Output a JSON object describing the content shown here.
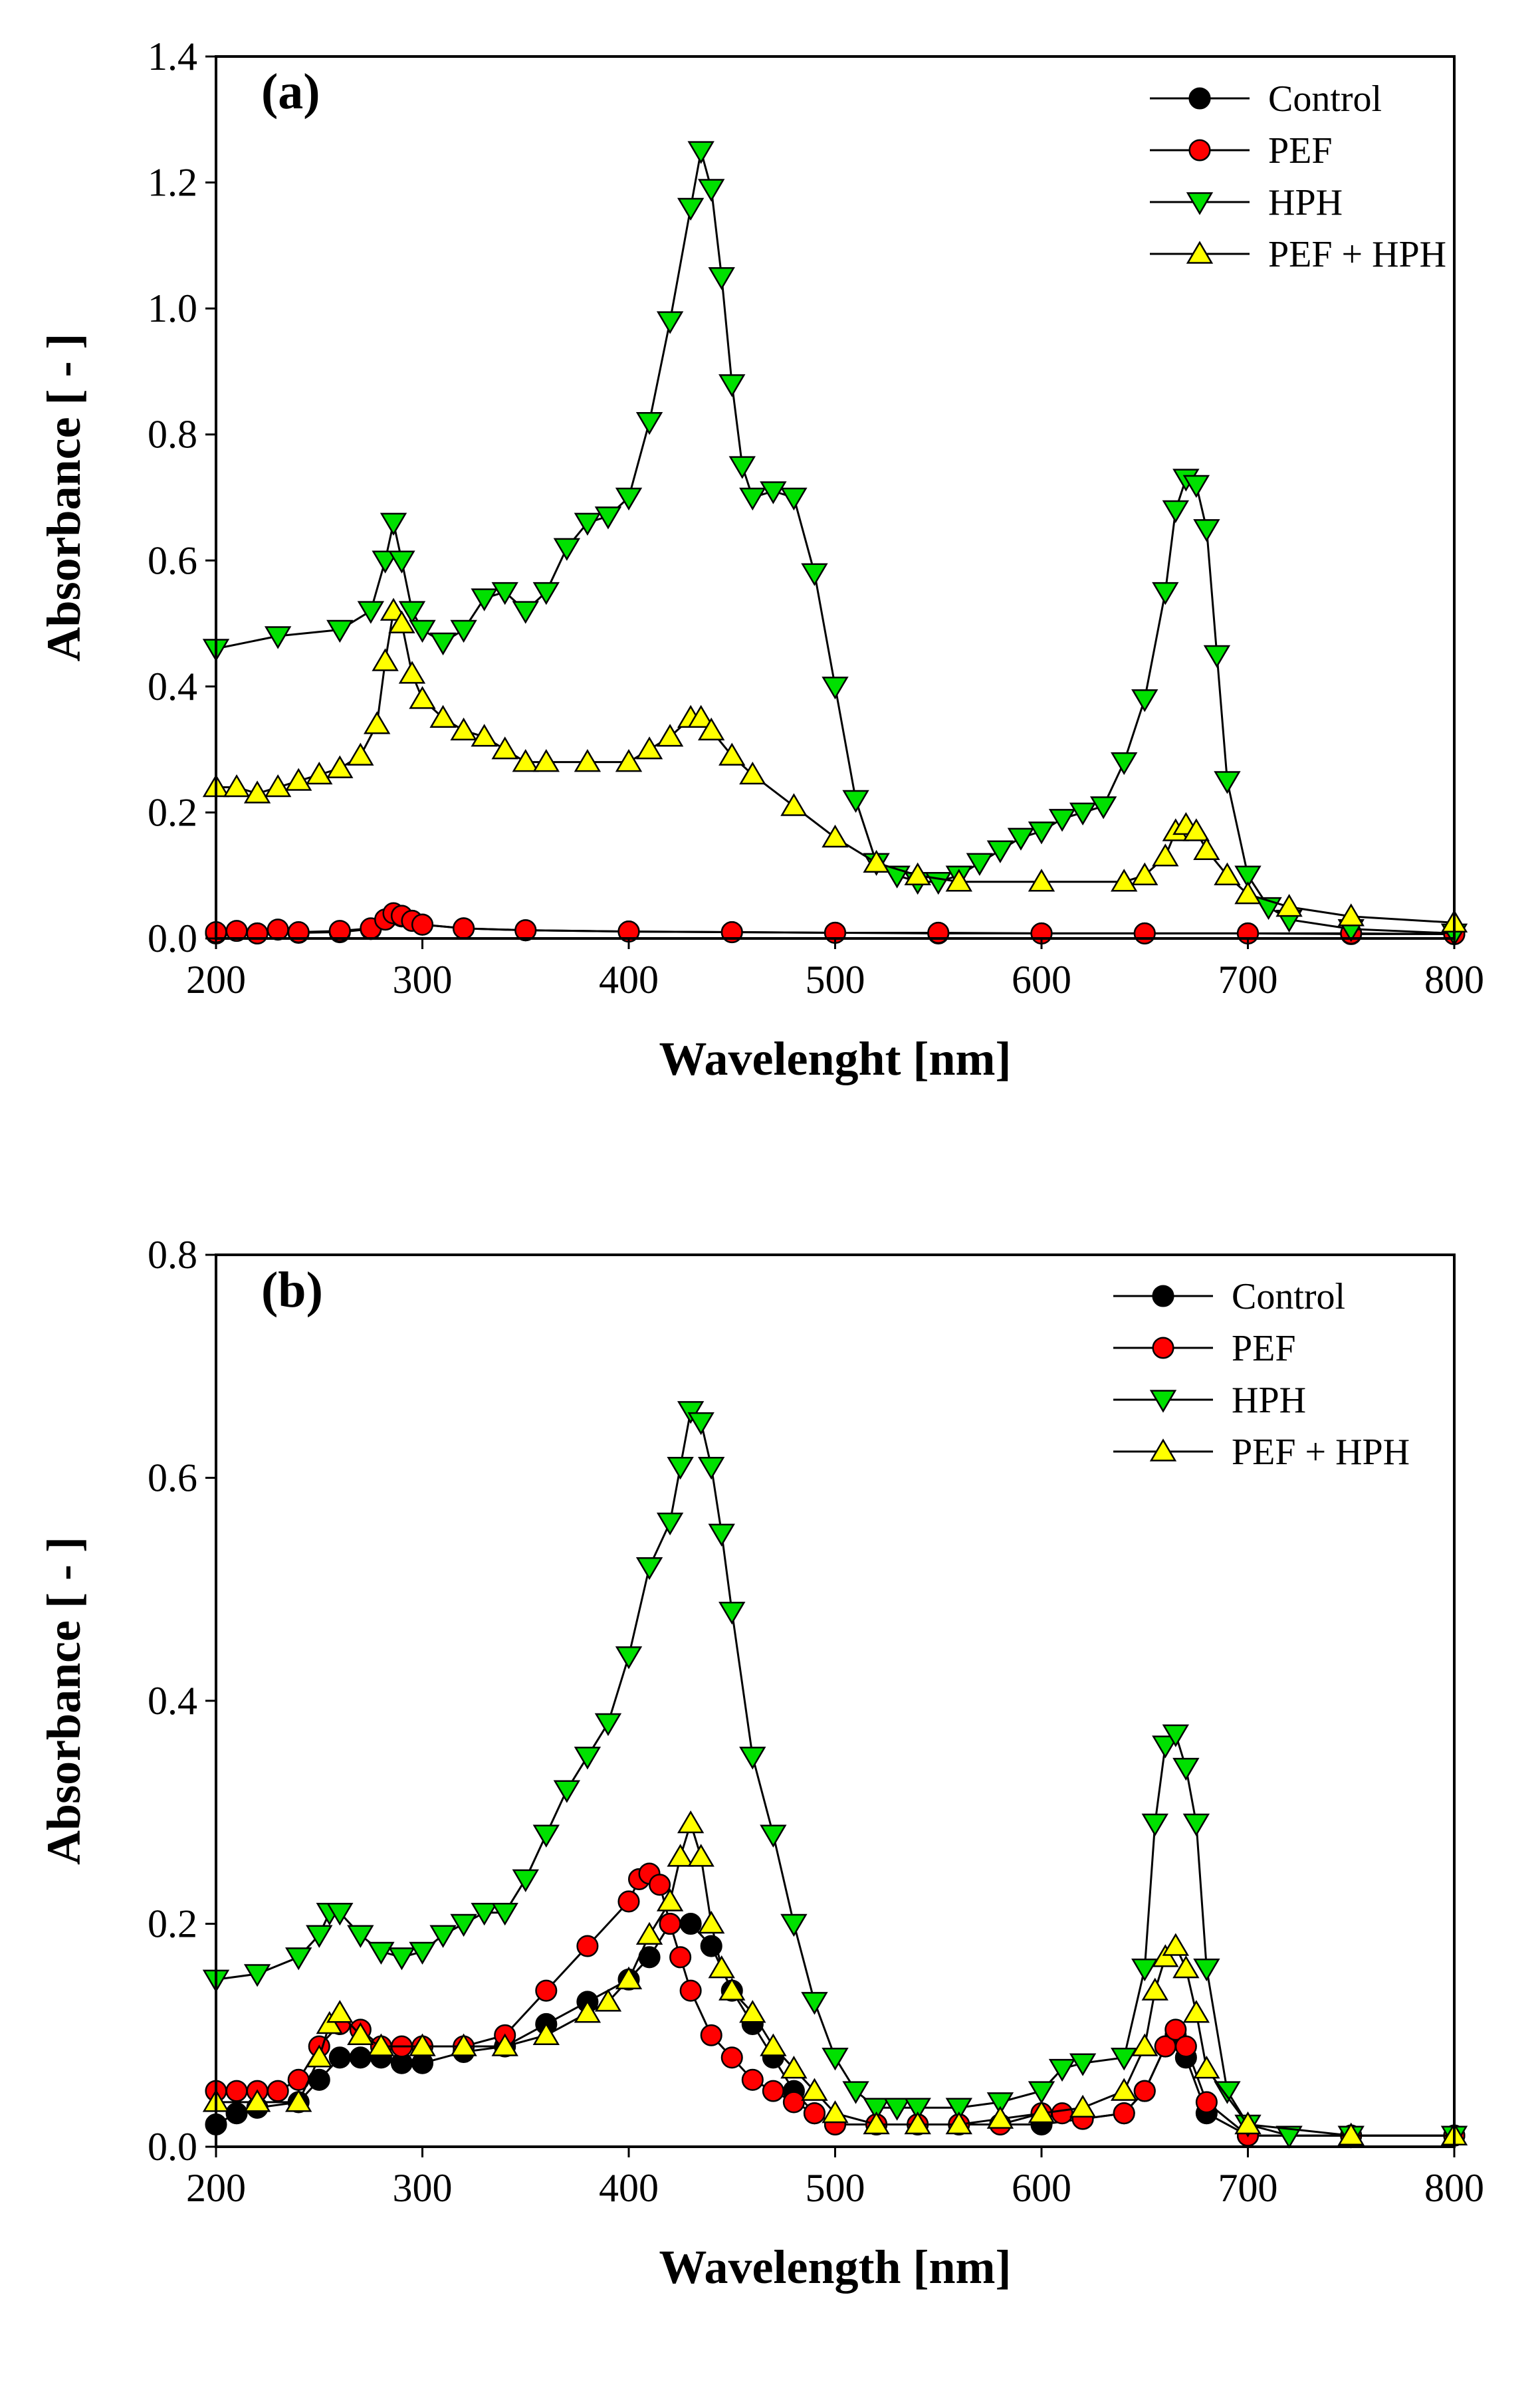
{
  "chart_data": [
    {
      "type": "scatter",
      "panel_label": "(a)",
      "xlabel": "Wavelenght [nm]",
      "ylabel": "Absorbance [ - ]",
      "xlim": [
        200,
        800
      ],
      "ylim": [
        0,
        1.4
      ],
      "xticks": [
        200,
        300,
        400,
        500,
        600,
        700,
        800
      ],
      "yticks": [
        0.0,
        0.2,
        0.4,
        0.6,
        0.8,
        1.0,
        1.2,
        1.4
      ],
      "ytick_labels": [
        "0.0",
        "0.2",
        "0.4",
        "0.6",
        "0.8",
        "1.0",
        "1.2",
        "1.4"
      ],
      "legend_position": "top-right",
      "grid": false,
      "series": [
        {
          "name": "Control",
          "marker": "circle",
          "color": "#000000",
          "x": [
            200,
            220,
            240,
            260,
            275,
            282,
            286,
            290,
            295,
            300,
            320,
            350,
            400,
            450,
            500,
            550,
            600,
            650,
            700,
            750,
            800
          ],
          "y": [
            0.008,
            0.008,
            0.009,
            0.01,
            0.015,
            0.03,
            0.038,
            0.035,
            0.028,
            0.022,
            0.016,
            0.013,
            0.011,
            0.01,
            0.009,
            0.008,
            0.008,
            0.008,
            0.008,
            0.007,
            0.007
          ]
        },
        {
          "name": "PEF",
          "marker": "circle",
          "color": "#ff0000",
          "x": [
            200,
            210,
            220,
            230,
            240,
            260,
            275,
            282,
            286,
            290,
            295,
            300,
            320,
            350,
            400,
            450,
            500,
            550,
            600,
            650,
            700,
            750,
            800
          ],
          "y": [
            0.01,
            0.012,
            0.008,
            0.014,
            0.01,
            0.012,
            0.016,
            0.03,
            0.04,
            0.036,
            0.028,
            0.022,
            0.016,
            0.013,
            0.011,
            0.01,
            0.009,
            0.009,
            0.008,
            0.008,
            0.008,
            0.008,
            0.007
          ]
        },
        {
          "name": "HPH",
          "marker": "triangle-down",
          "color": "#00e000",
          "x": [
            200,
            230,
            260,
            275,
            282,
            286,
            290,
            295,
            300,
            310,
            320,
            330,
            340,
            350,
            360,
            370,
            380,
            390,
            400,
            410,
            420,
            430,
            435,
            440,
            445,
            450,
            455,
            460,
            470,
            480,
            490,
            500,
            510,
            520,
            530,
            540,
            550,
            560,
            570,
            580,
            590,
            600,
            610,
            620,
            630,
            640,
            650,
            660,
            665,
            670,
            675,
            680,
            685,
            690,
            700,
            710,
            720,
            750,
            800
          ],
          "y": [
            0.46,
            0.48,
            0.49,
            0.52,
            0.6,
            0.66,
            0.6,
            0.52,
            0.49,
            0.47,
            0.49,
            0.54,
            0.55,
            0.52,
            0.55,
            0.62,
            0.66,
            0.67,
            0.7,
            0.82,
            0.98,
            1.16,
            1.25,
            1.19,
            1.05,
            0.88,
            0.75,
            0.7,
            0.71,
            0.7,
            0.58,
            0.4,
            0.22,
            0.12,
            0.1,
            0.09,
            0.09,
            0.1,
            0.12,
            0.14,
            0.16,
            0.17,
            0.19,
            0.2,
            0.21,
            0.28,
            0.38,
            0.55,
            0.68,
            0.73,
            0.72,
            0.65,
            0.45,
            0.25,
            0.1,
            0.05,
            0.03,
            0.015,
            0.008
          ]
        },
        {
          "name": "PEF + HPH",
          "marker": "triangle-up",
          "color": "#ffff00",
          "x": [
            200,
            210,
            220,
            230,
            240,
            250,
            260,
            270,
            278,
            282,
            286,
            290,
            295,
            300,
            310,
            320,
            330,
            340,
            350,
            360,
            380,
            400,
            410,
            420,
            430,
            435,
            440,
            450,
            460,
            480,
            500,
            520,
            540,
            560,
            600,
            640,
            650,
            660,
            665,
            670,
            675,
            680,
            690,
            700,
            720,
            750,
            800
          ],
          "y": [
            0.24,
            0.24,
            0.23,
            0.24,
            0.25,
            0.26,
            0.27,
            0.29,
            0.34,
            0.44,
            0.52,
            0.5,
            0.42,
            0.38,
            0.35,
            0.33,
            0.32,
            0.3,
            0.28,
            0.28,
            0.28,
            0.28,
            0.3,
            0.32,
            0.35,
            0.35,
            0.33,
            0.29,
            0.26,
            0.21,
            0.16,
            0.12,
            0.1,
            0.09,
            0.09,
            0.09,
            0.1,
            0.13,
            0.17,
            0.18,
            0.17,
            0.14,
            0.1,
            0.07,
            0.05,
            0.035,
            0.025
          ]
        }
      ]
    },
    {
      "type": "scatter",
      "panel_label": "(b)",
      "xlabel": "Wavelength [nm]",
      "ylabel": "Absorbance [ - ]",
      "xlim": [
        200,
        800
      ],
      "ylim": [
        0,
        0.8
      ],
      "xticks": [
        200,
        300,
        400,
        500,
        600,
        700,
        800
      ],
      "yticks": [
        0.0,
        0.2,
        0.4,
        0.6,
        0.8
      ],
      "ytick_labels": [
        "0.0",
        "0.2",
        "0.4",
        "0.6",
        "0.8"
      ],
      "legend_position": "top-right",
      "grid": false,
      "series": [
        {
          "name": "Control",
          "marker": "circle",
          "color": "#000000",
          "x": [
            200,
            210,
            220,
            240,
            250,
            260,
            270,
            280,
            290,
            300,
            320,
            340,
            360,
            380,
            400,
            410,
            420,
            430,
            440,
            450,
            460,
            470,
            480,
            490,
            500,
            520,
            540,
            560,
            580,
            600,
            620,
            640,
            650,
            660,
            665,
            670,
            680,
            700,
            750,
            800
          ],
          "y": [
            0.02,
            0.03,
            0.035,
            0.04,
            0.06,
            0.08,
            0.08,
            0.08,
            0.075,
            0.075,
            0.085,
            0.09,
            0.11,
            0.13,
            0.15,
            0.17,
            0.2,
            0.2,
            0.18,
            0.14,
            0.11,
            0.08,
            0.05,
            0.03,
            0.02,
            0.02,
            0.02,
            0.02,
            0.02,
            0.02,
            0.025,
            0.03,
            0.05,
            0.09,
            0.1,
            0.08,
            0.03,
            0.01,
            0.01,
            0.01
          ]
        },
        {
          "name": "PEF",
          "marker": "circle",
          "color": "#ff0000",
          "x": [
            200,
            210,
            220,
            230,
            240,
            250,
            260,
            270,
            280,
            290,
            300,
            320,
            340,
            360,
            380,
            400,
            405,
            410,
            415,
            420,
            425,
            430,
            440,
            450,
            460,
            470,
            480,
            490,
            500,
            520,
            540,
            560,
            580,
            600,
            610,
            620,
            640,
            650,
            660,
            665,
            670,
            680,
            700,
            750,
            800
          ],
          "y": [
            0.05,
            0.05,
            0.05,
            0.05,
            0.06,
            0.09,
            0.11,
            0.105,
            0.09,
            0.09,
            0.09,
            0.09,
            0.1,
            0.14,
            0.18,
            0.22,
            0.24,
            0.245,
            0.235,
            0.2,
            0.17,
            0.14,
            0.1,
            0.08,
            0.06,
            0.05,
            0.04,
            0.03,
            0.02,
            0.02,
            0.02,
            0.02,
            0.02,
            0.03,
            0.03,
            0.025,
            0.03,
            0.05,
            0.09,
            0.105,
            0.09,
            0.04,
            0.01,
            0.01,
            0.01
          ]
        },
        {
          "name": "HPH",
          "marker": "triangle-down",
          "color": "#00e000",
          "x": [
            200,
            220,
            240,
            250,
            255,
            260,
            270,
            280,
            290,
            300,
            310,
            320,
            330,
            340,
            350,
            360,
            370,
            380,
            390,
            400,
            410,
            420,
            425,
            430,
            435,
            440,
            445,
            450,
            460,
            470,
            480,
            490,
            500,
            510,
            520,
            530,
            540,
            560,
            580,
            600,
            610,
            620,
            640,
            650,
            655,
            660,
            665,
            670,
            675,
            680,
            690,
            700,
            720,
            750,
            800
          ],
          "y": [
            0.15,
            0.155,
            0.17,
            0.19,
            0.21,
            0.21,
            0.19,
            0.175,
            0.17,
            0.175,
            0.19,
            0.2,
            0.21,
            0.21,
            0.24,
            0.28,
            0.32,
            0.35,
            0.38,
            0.44,
            0.52,
            0.56,
            0.61,
            0.66,
            0.65,
            0.61,
            0.55,
            0.48,
            0.35,
            0.28,
            0.2,
            0.13,
            0.08,
            0.05,
            0.035,
            0.035,
            0.035,
            0.035,
            0.04,
            0.05,
            0.07,
            0.075,
            0.08,
            0.16,
            0.29,
            0.36,
            0.37,
            0.34,
            0.29,
            0.16,
            0.05,
            0.02,
            0.01,
            0.01,
            0.01
          ]
        },
        {
          "name": "PEF + HPH",
          "marker": "triangle-up",
          "color": "#ffff00",
          "x": [
            200,
            220,
            240,
            250,
            255,
            260,
            270,
            280,
            300,
            320,
            340,
            360,
            380,
            390,
            400,
            410,
            420,
            425,
            430,
            435,
            440,
            445,
            450,
            460,
            470,
            480,
            490,
            500,
            520,
            540,
            560,
            580,
            600,
            620,
            640,
            650,
            655,
            660,
            665,
            670,
            675,
            680,
            700,
            750,
            800
          ],
          "y": [
            0.04,
            0.04,
            0.04,
            0.08,
            0.11,
            0.12,
            0.1,
            0.09,
            0.09,
            0.09,
            0.09,
            0.1,
            0.12,
            0.13,
            0.15,
            0.19,
            0.22,
            0.26,
            0.29,
            0.26,
            0.2,
            0.16,
            0.14,
            0.12,
            0.09,
            0.07,
            0.05,
            0.03,
            0.02,
            0.02,
            0.02,
            0.025,
            0.03,
            0.035,
            0.05,
            0.09,
            0.14,
            0.17,
            0.18,
            0.16,
            0.12,
            0.07,
            0.02,
            0.01,
            0.01
          ]
        }
      ]
    }
  ]
}
